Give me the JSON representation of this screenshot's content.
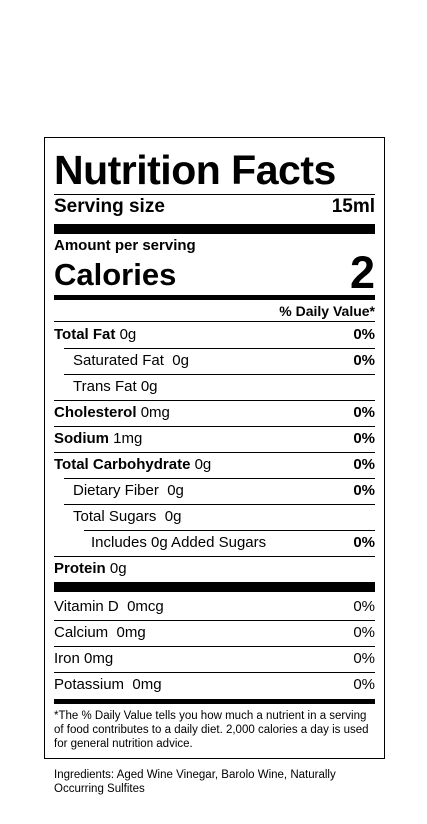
{
  "label": {
    "title": "Nutrition Facts",
    "serving_size_label": "Serving size",
    "serving_size_value": "15ml",
    "amount_per_serving": "Amount per serving",
    "calories_label": "Calories",
    "calories_value": "2",
    "daily_value_header": "% Daily Value*",
    "nutrients": [
      {
        "name": "Total Fat",
        "amount": "0g",
        "dv": "0%"
      },
      {
        "name": "Saturated Fat",
        "amount": "0g",
        "dv": "0%"
      },
      {
        "name": "Trans Fat",
        "amount": "0g",
        "dv": ""
      },
      {
        "name": "Cholesterol",
        "amount": "0mg",
        "dv": "0%"
      },
      {
        "name": "Sodium",
        "amount": "1mg",
        "dv": "0%"
      },
      {
        "name": "Total Carbohydrate",
        "amount": "0g",
        "dv": "0%"
      },
      {
        "name": "Dietary Fiber",
        "amount": "0g",
        "dv": "0%"
      },
      {
        "name": "Total Sugars",
        "amount": "0g",
        "dv": ""
      },
      {
        "name": "Includes 0g Added Sugars",
        "amount": "",
        "dv": "0%"
      },
      {
        "name": "Protein",
        "amount": "0g",
        "dv": ""
      }
    ],
    "vitamins": [
      {
        "name": "Vitamin D",
        "amount": "0mcg",
        "dv": "0%"
      },
      {
        "name": "Calcium",
        "amount": "0mg",
        "dv": "0%"
      },
      {
        "name": "Iron",
        "amount": "0mg",
        "dv": "0%"
      },
      {
        "name": "Potassium",
        "amount": "0mg",
        "dv": "0%"
      }
    ],
    "footnote": "*The % Daily Value tells you how much a nutrient in a serving of food contributes to a daily diet. 2,000 calories a day is used for general nutrition advice."
  },
  "ingredients": "Ingredients: Aged Wine Vinegar, Barolo Wine, Naturally Occurring Sulfites"
}
